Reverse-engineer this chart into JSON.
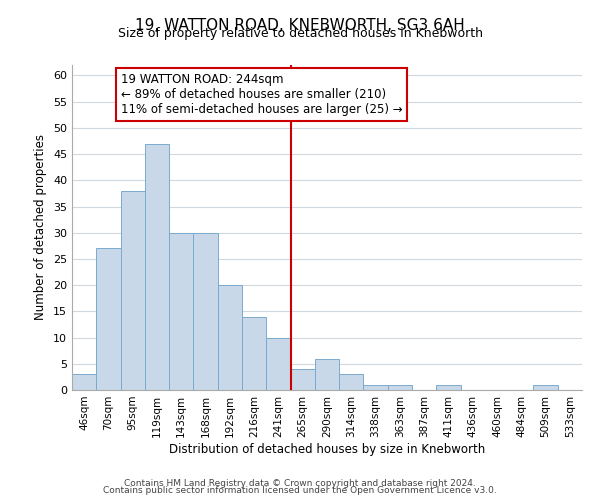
{
  "title": "19, WATTON ROAD, KNEBWORTH, SG3 6AH",
  "subtitle": "Size of property relative to detached houses in Knebworth",
  "xlabel": "Distribution of detached houses by size in Knebworth",
  "ylabel": "Number of detached properties",
  "bar_labels": [
    "46sqm",
    "70sqm",
    "95sqm",
    "119sqm",
    "143sqm",
    "168sqm",
    "192sqm",
    "216sqm",
    "241sqm",
    "265sqm",
    "290sqm",
    "314sqm",
    "338sqm",
    "363sqm",
    "387sqm",
    "411sqm",
    "436sqm",
    "460sqm",
    "484sqm",
    "509sqm",
    "533sqm"
  ],
  "bar_values": [
    3,
    27,
    38,
    47,
    30,
    30,
    20,
    14,
    10,
    4,
    6,
    3,
    1,
    1,
    0,
    1,
    0,
    0,
    0,
    1,
    0
  ],
  "bar_color": "#c8d8e8",
  "bar_edge_color": "#7aaacf",
  "vline_x": 8.5,
  "vline_color": "#cc0000",
  "ylim": [
    0,
    62
  ],
  "yticks": [
    0,
    5,
    10,
    15,
    20,
    25,
    30,
    35,
    40,
    45,
    50,
    55,
    60
  ],
  "annotation_title": "19 WATTON ROAD: 244sqm",
  "annotation_line1": "← 89% of detached houses are smaller (210)",
  "annotation_line2": "11% of semi-detached houses are larger (25) →",
  "annotation_box_color": "#ffffff",
  "annotation_box_edge": "#cc0000",
  "footer1": "Contains HM Land Registry data © Crown copyright and database right 2024.",
  "footer2": "Contains public sector information licensed under the Open Government Licence v3.0.",
  "background_color": "#ffffff",
  "grid_color": "#d0d8e0"
}
